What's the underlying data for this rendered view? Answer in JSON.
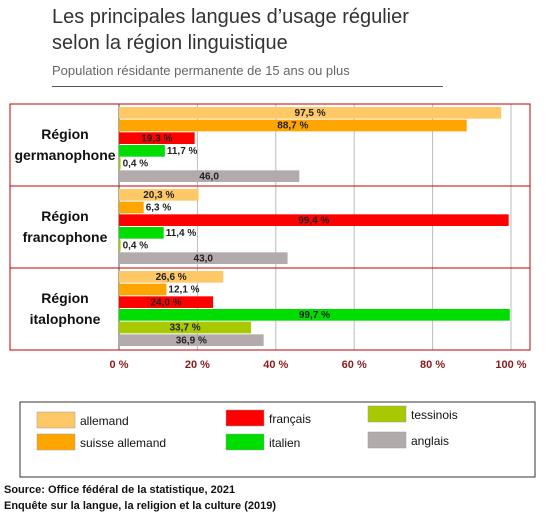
{
  "chart_data": {
    "type": "bar",
    "title": "Les principales langues d’usage régulier selon la région linguistique",
    "subtitle": "Population résidante permanente de 15 ans ou plus",
    "categories": [
      "Région germanophone",
      "Région francophone",
      "Région italophone"
    ],
    "series": [
      {
        "name": "allemand",
        "color": "#ffc866",
        "values": [
          97.5,
          20.3,
          26.6
        ],
        "value_labels": [
          "97,5 %",
          "20,3 %",
          "26,6 %"
        ]
      },
      {
        "name": "suisse allemand",
        "color": "#ffa500",
        "values": [
          88.7,
          6.3,
          12.1
        ],
        "value_labels": [
          "88,7 %",
          "6,3 %",
          "12,1 %"
        ]
      },
      {
        "name": "français",
        "color": "#ff0000",
        "values": [
          19.3,
          99.4,
          24.0
        ],
        "value_labels": [
          "19,3 %",
          "99,4 %",
          "24,0 %"
        ]
      },
      {
        "name": "italien",
        "color": "#00dd00",
        "values": [
          11.7,
          11.4,
          99.7
        ],
        "value_labels": [
          "11,7 %",
          "11,4 %",
          "99,7 %"
        ]
      },
      {
        "name": "tessinois",
        "color": "#a8c800",
        "values": [
          0.4,
          0.4,
          33.7
        ],
        "value_labels": [
          "0,4 %",
          "0,4 %",
          "33,7 %"
        ]
      },
      {
        "name": "anglais",
        "color": "#b3abab",
        "values": [
          46.0,
          43.0,
          36.9
        ],
        "value_labels": [
          "46,0",
          "43,0",
          "36,9 %"
        ]
      }
    ],
    "xlim": [
      0,
      100
    ],
    "xticks": [
      {
        "value": 0,
        "label": "0 %"
      },
      {
        "value": 20,
        "label": "20 %"
      },
      {
        "value": 40,
        "label": "40 %"
      },
      {
        "value": 60,
        "label": "60 %"
      },
      {
        "value": 80,
        "label": "80 %"
      },
      {
        "value": 100,
        "label": "100 %"
      }
    ],
    "grid": true,
    "source": [
      "Source: Office fédéral de la statistique, 2021",
      "Enquête sur la langue, la religion et la culture (2019)"
    ]
  }
}
